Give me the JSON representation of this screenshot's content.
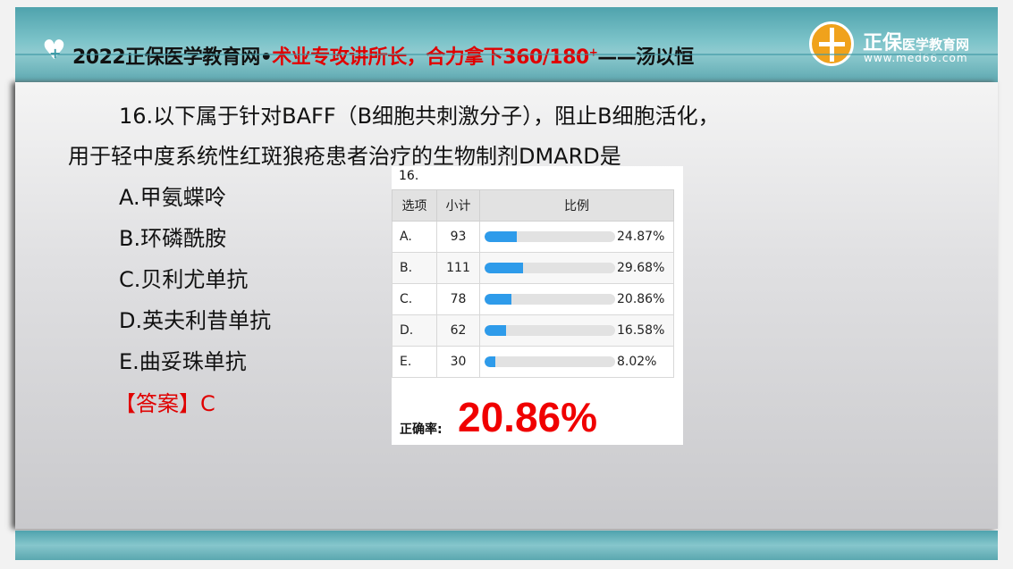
{
  "header": {
    "title_black": "2022正保医学教育网•",
    "title_red": "术业专攻讲所长，合力拿下360/180",
    "title_sup": "+",
    "title_tail": "——汤以恒",
    "brand": "正保",
    "brand_small": "医学教育网",
    "url": "www.med66.com"
  },
  "question": {
    "line1": "16.以下属于针对BAFF（B细胞共刺激分子），阻止B细胞活化，",
    "line2": "用于轻中度系统性红斑狼疮患者治疗的生物制剂DMARD是",
    "options": [
      "A.甲氨蝶呤",
      "B.环磷酰胺",
      "C.贝利尤单抗",
      "D.英夫利昔单抗",
      "E.曲妥珠单抗"
    ],
    "answer": "【答案】C"
  },
  "stats": {
    "number": "16.",
    "headers": [
      "选项",
      "小计",
      "比例"
    ],
    "rows": [
      {
        "option": "A.",
        "count": "93",
        "percent": "24.87%",
        "value": 24.87
      },
      {
        "option": "B.",
        "count": "111",
        "percent": "29.68%",
        "value": 29.68
      },
      {
        "option": "C.",
        "count": "78",
        "percent": "20.86%",
        "value": 20.86
      },
      {
        "option": "D.",
        "count": "62",
        "percent": "16.58%",
        "value": 16.58
      },
      {
        "option": "E.",
        "count": "30",
        "percent": "8.02%",
        "value": 8.02
      }
    ],
    "accuracy_label": "正确率:",
    "accuracy": "20.86%",
    "bar_color": "#2e9bea"
  }
}
